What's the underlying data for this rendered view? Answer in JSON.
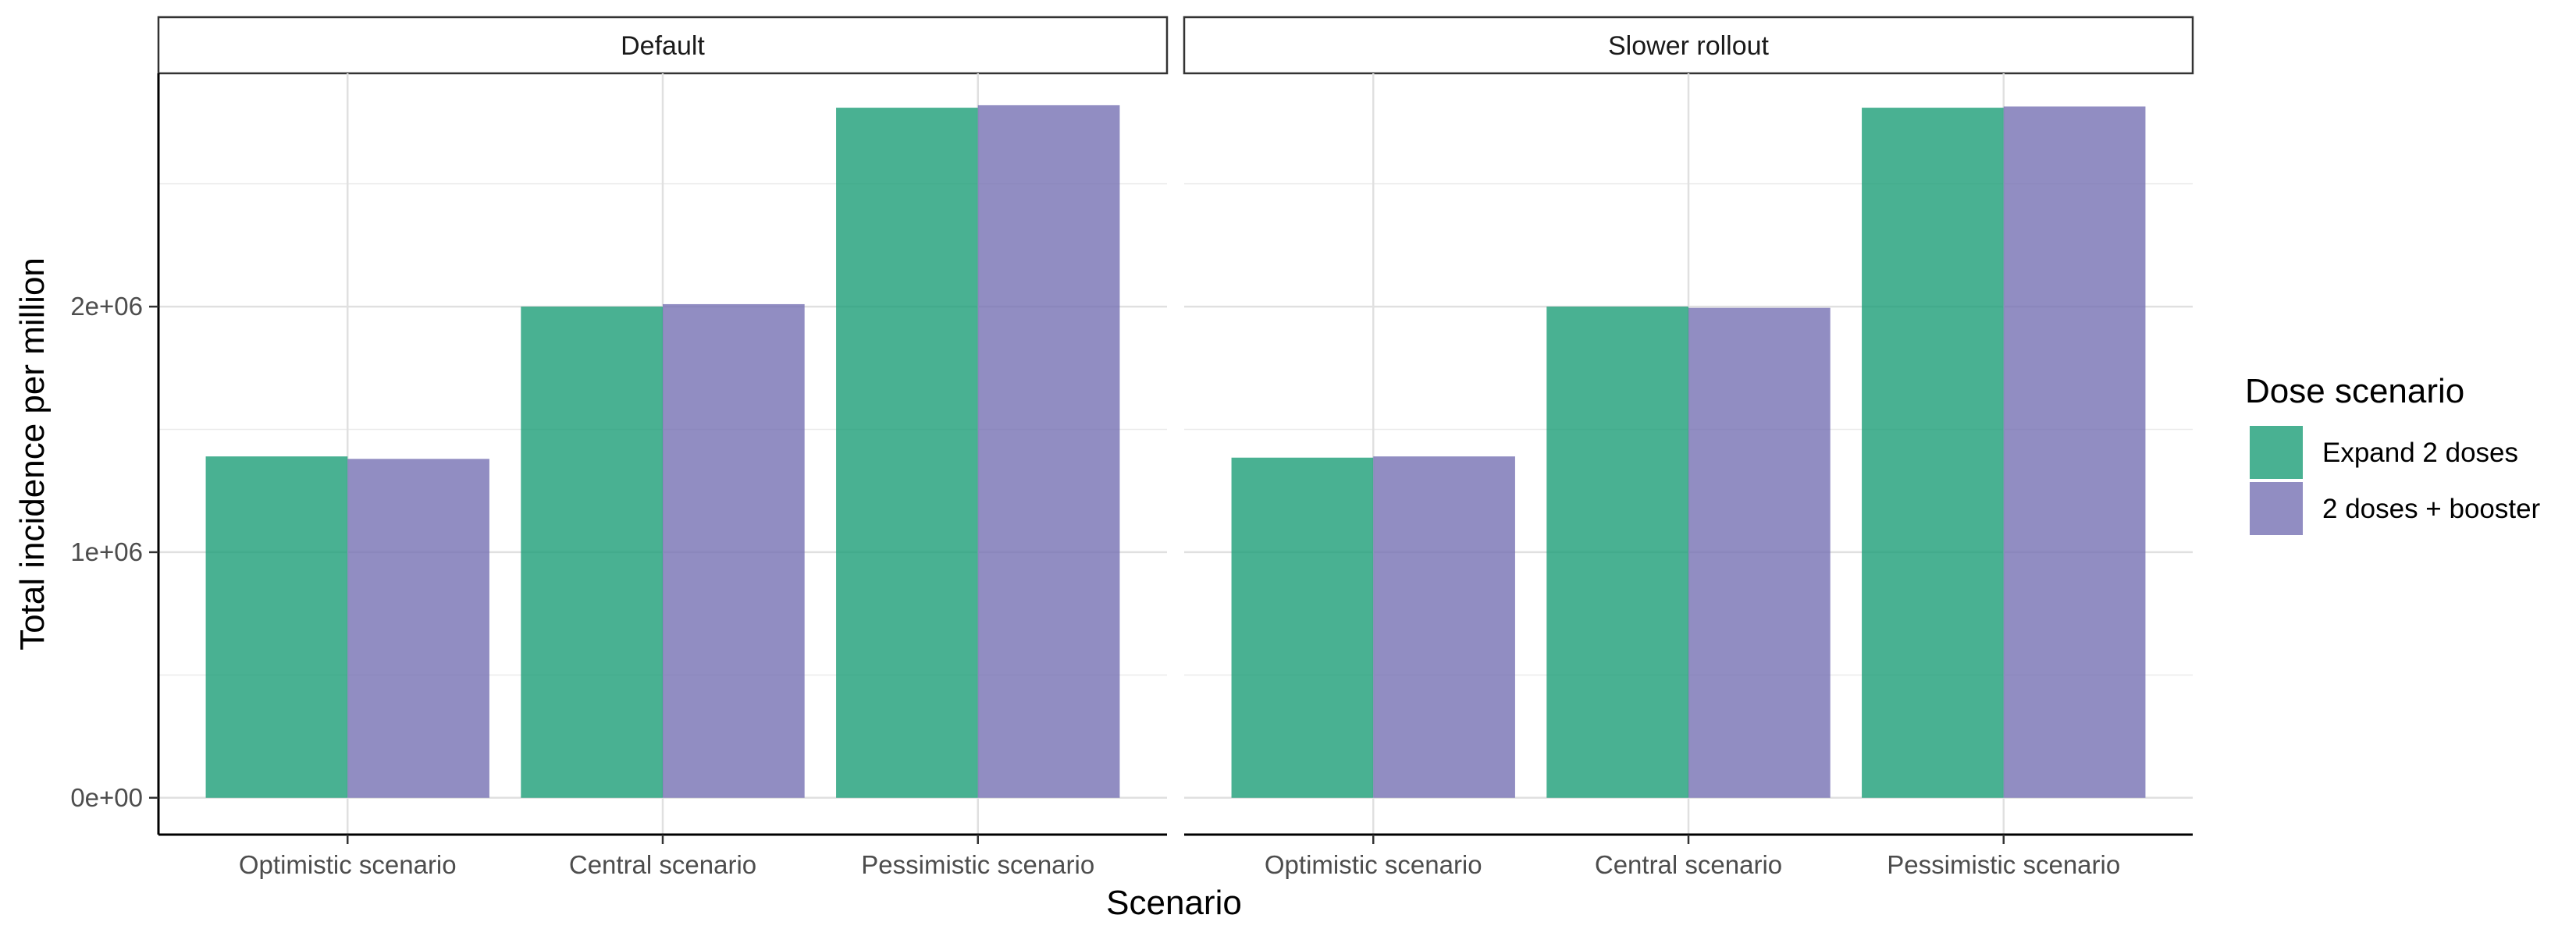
{
  "chart_data": {
    "type": "bar",
    "xlabel": "Scenario",
    "ylabel": "Total incidence per million",
    "ylim": [
      -150000,
      2950000
    ],
    "yticks": [
      0,
      1000000,
      2000000
    ],
    "ytick_labels": [
      "0e+00",
      "1e+06",
      "2e+06"
    ],
    "categories": [
      "Optimistic scenario",
      "Central scenario",
      "Pessimistic scenario"
    ],
    "legend": {
      "title": "Dose scenario",
      "position": "right",
      "items": [
        "Expand 2 doses",
        "2 doses + booster"
      ]
    },
    "colors": [
      "#1b9e77",
      "#7570b3"
    ],
    "grid": true,
    "panels": [
      {
        "name": "Default",
        "series": [
          {
            "name": "Expand 2 doses",
            "values": [
              1390000,
              2000000,
              2810000
            ]
          },
          {
            "name": "2 doses + booster",
            "values": [
              1380000,
              2010000,
              2820000
            ]
          }
        ]
      },
      {
        "name": "Slower rollout",
        "series": [
          {
            "name": "Expand 2 doses",
            "values": [
              1385000,
              2000000,
              2810000
            ]
          },
          {
            "name": "2 doses + booster",
            "values": [
              1390000,
              1995000,
              2815000
            ]
          }
        ]
      }
    ]
  }
}
